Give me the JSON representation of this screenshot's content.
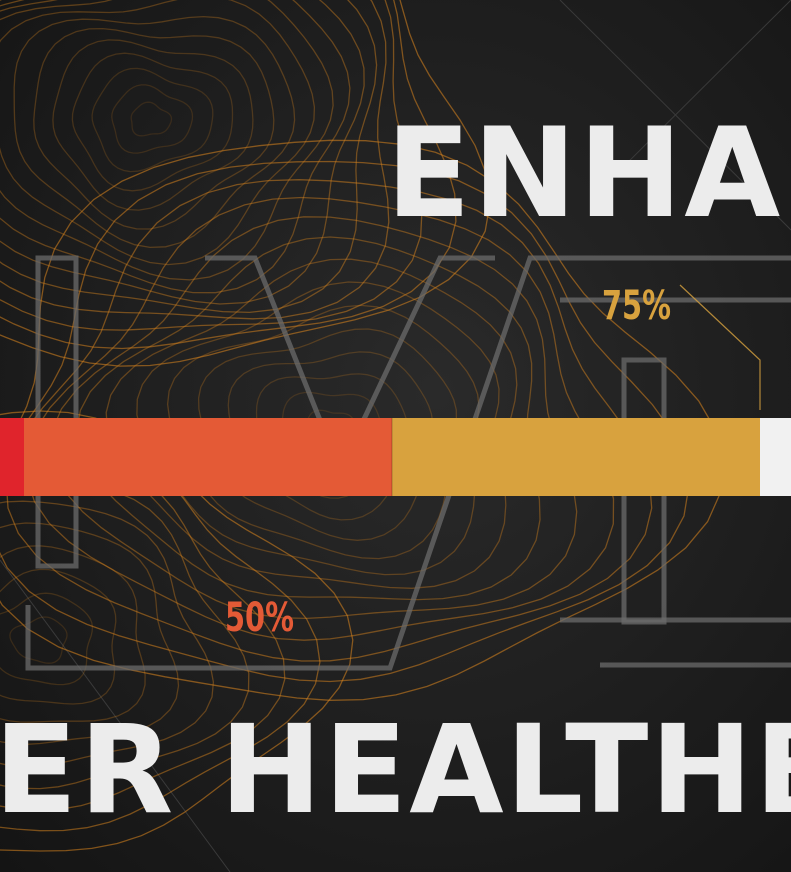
{
  "title_top": "ENHA",
  "title_bottom": "ER HEALTHBA",
  "health_bar": {
    "segments": [
      {
        "label": "",
        "color": "#e0242c"
      },
      {
        "label": "50%",
        "color": "#e45a36"
      },
      {
        "label": "75%",
        "color": "#d8a23e"
      },
      {
        "label": "",
        "color": "#f1f1f1"
      }
    ]
  },
  "colors": {
    "title": "#ececec",
    "contour": "#d4821e",
    "outline": "#6b6b6b",
    "label_50": "#e45a36",
    "label_75": "#d8a23e"
  }
}
